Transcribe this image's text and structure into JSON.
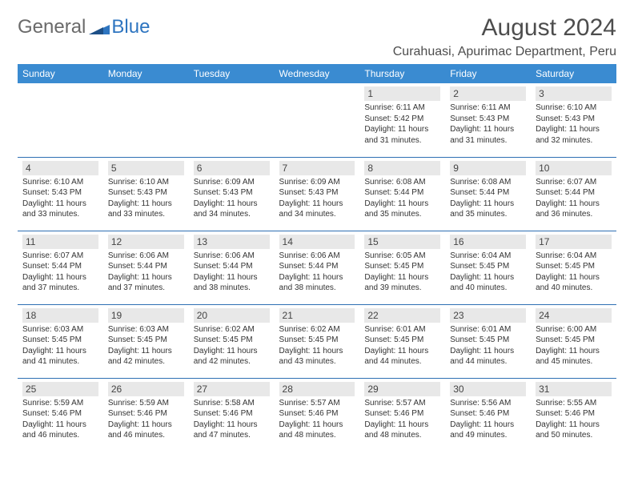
{
  "brand": {
    "part1": "General",
    "part2": "Blue"
  },
  "title": "August 2024",
  "location": "Curahuasi, Apurimac Department, Peru",
  "style": {
    "header_bg": "#3a8bd1",
    "header_fg": "#ffffff",
    "daynum_bg": "#e8e8e8",
    "rule_color": "#2e6fb3",
    "title_color": "#4d4d4d",
    "body_fg": "#333333",
    "page_bg": "#ffffff",
    "month_fontsize": 30,
    "location_fontsize": 16,
    "weekday_fontsize": 12,
    "daynum_fontsize": 12,
    "cell_fontsize": 10
  },
  "weekdays": [
    "Sunday",
    "Monday",
    "Tuesday",
    "Wednesday",
    "Thursday",
    "Friday",
    "Saturday"
  ],
  "weeks": [
    [
      {
        "n": "",
        "sunrise": "",
        "sunset": "",
        "daylight": ""
      },
      {
        "n": "",
        "sunrise": "",
        "sunset": "",
        "daylight": ""
      },
      {
        "n": "",
        "sunrise": "",
        "sunset": "",
        "daylight": ""
      },
      {
        "n": "",
        "sunrise": "",
        "sunset": "",
        "daylight": ""
      },
      {
        "n": "1",
        "sunrise": "Sunrise: 6:11 AM",
        "sunset": "Sunset: 5:42 PM",
        "daylight": "Daylight: 11 hours and 31 minutes."
      },
      {
        "n": "2",
        "sunrise": "Sunrise: 6:11 AM",
        "sunset": "Sunset: 5:43 PM",
        "daylight": "Daylight: 11 hours and 31 minutes."
      },
      {
        "n": "3",
        "sunrise": "Sunrise: 6:10 AM",
        "sunset": "Sunset: 5:43 PM",
        "daylight": "Daylight: 11 hours and 32 minutes."
      }
    ],
    [
      {
        "n": "4",
        "sunrise": "Sunrise: 6:10 AM",
        "sunset": "Sunset: 5:43 PM",
        "daylight": "Daylight: 11 hours and 33 minutes."
      },
      {
        "n": "5",
        "sunrise": "Sunrise: 6:10 AM",
        "sunset": "Sunset: 5:43 PM",
        "daylight": "Daylight: 11 hours and 33 minutes."
      },
      {
        "n": "6",
        "sunrise": "Sunrise: 6:09 AM",
        "sunset": "Sunset: 5:43 PM",
        "daylight": "Daylight: 11 hours and 34 minutes."
      },
      {
        "n": "7",
        "sunrise": "Sunrise: 6:09 AM",
        "sunset": "Sunset: 5:43 PM",
        "daylight": "Daylight: 11 hours and 34 minutes."
      },
      {
        "n": "8",
        "sunrise": "Sunrise: 6:08 AM",
        "sunset": "Sunset: 5:44 PM",
        "daylight": "Daylight: 11 hours and 35 minutes."
      },
      {
        "n": "9",
        "sunrise": "Sunrise: 6:08 AM",
        "sunset": "Sunset: 5:44 PM",
        "daylight": "Daylight: 11 hours and 35 minutes."
      },
      {
        "n": "10",
        "sunrise": "Sunrise: 6:07 AM",
        "sunset": "Sunset: 5:44 PM",
        "daylight": "Daylight: 11 hours and 36 minutes."
      }
    ],
    [
      {
        "n": "11",
        "sunrise": "Sunrise: 6:07 AM",
        "sunset": "Sunset: 5:44 PM",
        "daylight": "Daylight: 11 hours and 37 minutes."
      },
      {
        "n": "12",
        "sunrise": "Sunrise: 6:06 AM",
        "sunset": "Sunset: 5:44 PM",
        "daylight": "Daylight: 11 hours and 37 minutes."
      },
      {
        "n": "13",
        "sunrise": "Sunrise: 6:06 AM",
        "sunset": "Sunset: 5:44 PM",
        "daylight": "Daylight: 11 hours and 38 minutes."
      },
      {
        "n": "14",
        "sunrise": "Sunrise: 6:06 AM",
        "sunset": "Sunset: 5:44 PM",
        "daylight": "Daylight: 11 hours and 38 minutes."
      },
      {
        "n": "15",
        "sunrise": "Sunrise: 6:05 AM",
        "sunset": "Sunset: 5:45 PM",
        "daylight": "Daylight: 11 hours and 39 minutes."
      },
      {
        "n": "16",
        "sunrise": "Sunrise: 6:04 AM",
        "sunset": "Sunset: 5:45 PM",
        "daylight": "Daylight: 11 hours and 40 minutes."
      },
      {
        "n": "17",
        "sunrise": "Sunrise: 6:04 AM",
        "sunset": "Sunset: 5:45 PM",
        "daylight": "Daylight: 11 hours and 40 minutes."
      }
    ],
    [
      {
        "n": "18",
        "sunrise": "Sunrise: 6:03 AM",
        "sunset": "Sunset: 5:45 PM",
        "daylight": "Daylight: 11 hours and 41 minutes."
      },
      {
        "n": "19",
        "sunrise": "Sunrise: 6:03 AM",
        "sunset": "Sunset: 5:45 PM",
        "daylight": "Daylight: 11 hours and 42 minutes."
      },
      {
        "n": "20",
        "sunrise": "Sunrise: 6:02 AM",
        "sunset": "Sunset: 5:45 PM",
        "daylight": "Daylight: 11 hours and 42 minutes."
      },
      {
        "n": "21",
        "sunrise": "Sunrise: 6:02 AM",
        "sunset": "Sunset: 5:45 PM",
        "daylight": "Daylight: 11 hours and 43 minutes."
      },
      {
        "n": "22",
        "sunrise": "Sunrise: 6:01 AM",
        "sunset": "Sunset: 5:45 PM",
        "daylight": "Daylight: 11 hours and 44 minutes."
      },
      {
        "n": "23",
        "sunrise": "Sunrise: 6:01 AM",
        "sunset": "Sunset: 5:45 PM",
        "daylight": "Daylight: 11 hours and 44 minutes."
      },
      {
        "n": "24",
        "sunrise": "Sunrise: 6:00 AM",
        "sunset": "Sunset: 5:45 PM",
        "daylight": "Daylight: 11 hours and 45 minutes."
      }
    ],
    [
      {
        "n": "25",
        "sunrise": "Sunrise: 5:59 AM",
        "sunset": "Sunset: 5:46 PM",
        "daylight": "Daylight: 11 hours and 46 minutes."
      },
      {
        "n": "26",
        "sunrise": "Sunrise: 5:59 AM",
        "sunset": "Sunset: 5:46 PM",
        "daylight": "Daylight: 11 hours and 46 minutes."
      },
      {
        "n": "27",
        "sunrise": "Sunrise: 5:58 AM",
        "sunset": "Sunset: 5:46 PM",
        "daylight": "Daylight: 11 hours and 47 minutes."
      },
      {
        "n": "28",
        "sunrise": "Sunrise: 5:57 AM",
        "sunset": "Sunset: 5:46 PM",
        "daylight": "Daylight: 11 hours and 48 minutes."
      },
      {
        "n": "29",
        "sunrise": "Sunrise: 5:57 AM",
        "sunset": "Sunset: 5:46 PM",
        "daylight": "Daylight: 11 hours and 48 minutes."
      },
      {
        "n": "30",
        "sunrise": "Sunrise: 5:56 AM",
        "sunset": "Sunset: 5:46 PM",
        "daylight": "Daylight: 11 hours and 49 minutes."
      },
      {
        "n": "31",
        "sunrise": "Sunrise: 5:55 AM",
        "sunset": "Sunset: 5:46 PM",
        "daylight": "Daylight: 11 hours and 50 minutes."
      }
    ]
  ]
}
